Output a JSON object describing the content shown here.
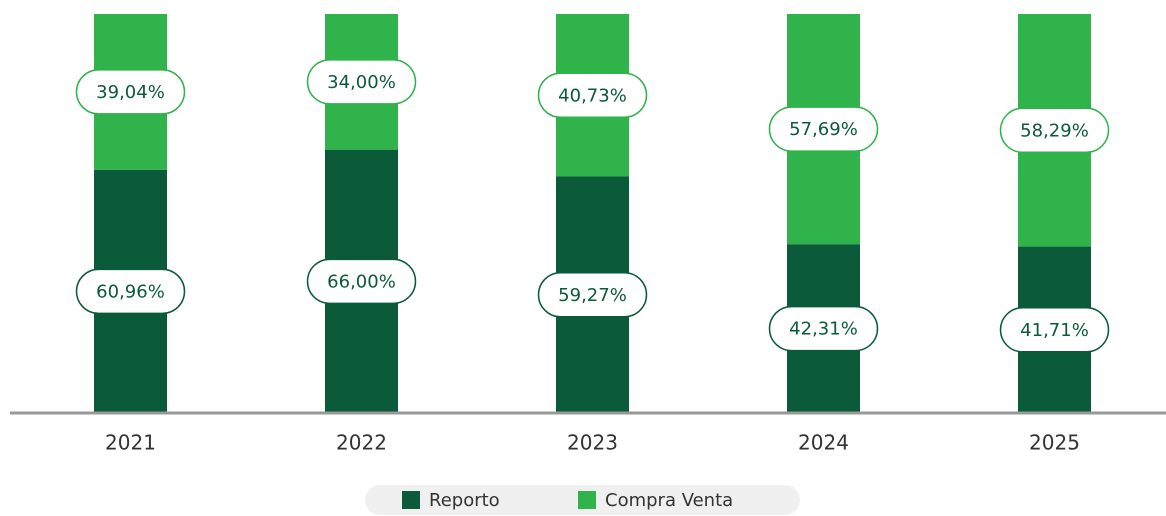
{
  "chart_data": {
    "type": "stacked_bar",
    "categories": [
      "2021",
      "2022",
      "2023",
      "2024",
      "2025"
    ],
    "series": [
      {
        "name": "Reporto",
        "color": "#0b5a3a",
        "values": [
          60.96,
          66.0,
          59.27,
          42.31,
          41.71
        ],
        "value_labels": [
          "60,96%",
          "66,00%",
          "59,27%",
          "42,31%",
          "41,71%"
        ]
      },
      {
        "name": "Compra Venta",
        "color": "#2fb34a",
        "values": [
          39.04,
          34.0,
          40.73,
          57.69,
          58.29
        ],
        "value_labels": [
          "39,04%",
          "34,00%",
          "40,73%",
          "57,69%",
          "58,29%"
        ]
      }
    ],
    "ylim": [
      0,
      100
    ],
    "legend": "bottom"
  }
}
